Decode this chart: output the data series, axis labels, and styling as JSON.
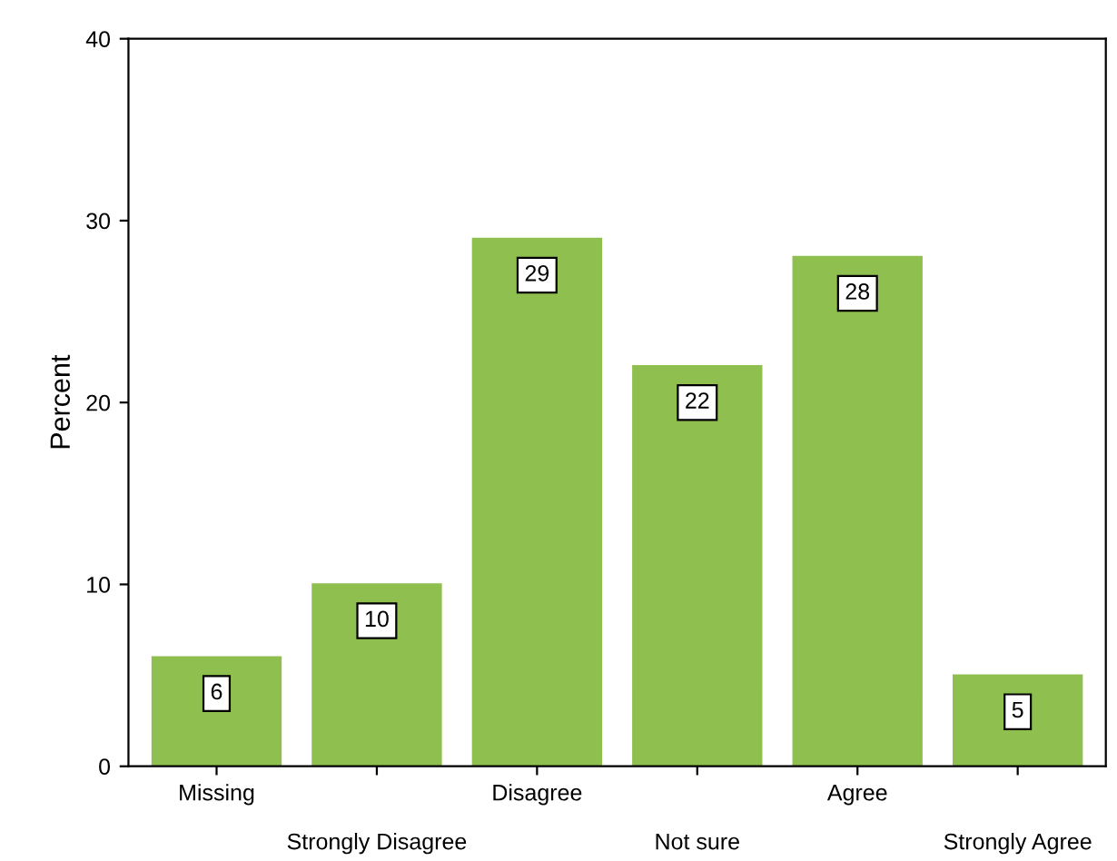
{
  "chart_data": {
    "type": "bar",
    "ylabel": "Percent",
    "categories": [
      "Missing",
      "Strongly Disagree",
      "Disagree",
      "Not sure",
      "Agree",
      "Strongly Agree"
    ],
    "values": [
      6,
      10,
      29,
      22,
      28,
      5
    ],
    "color": "#8fbf4f",
    "ylim": [
      0,
      40
    ],
    "yticks": [
      0,
      10,
      20,
      30,
      40
    ],
    "data_labels": true,
    "grid": false,
    "legend": false
  }
}
